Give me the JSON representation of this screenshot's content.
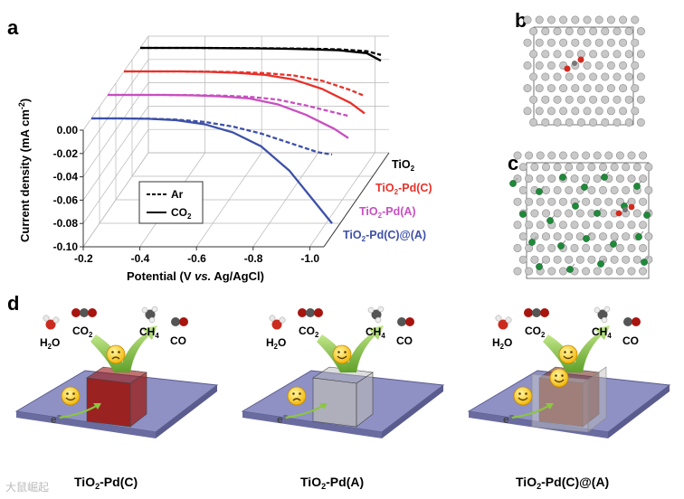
{
  "panels": {
    "a": "a",
    "b": "b",
    "c": "c",
    "d": "d"
  },
  "chart_data": {
    "type": "line",
    "title": "",
    "xlabel_parts": [
      "Potential (V ",
      "vs.",
      " Ag/AgCl)"
    ],
    "ylabel_text": "Current density (mA cm",
    "ylabel_sup": "-2",
    "ylabel_end": ")",
    "xlim": [
      -0.2,
      -1.05
    ],
    "ylim": [
      -0.1,
      0.0
    ],
    "xticks": [
      "-0.2",
      "-0.4",
      "-0.6",
      "-0.8",
      "-1.0"
    ],
    "xtick_values": [
      -0.2,
      -0.4,
      -0.6,
      -0.8,
      -1.0
    ],
    "yticks": [
      "0.00",
      "-0.02",
      "-0.04",
      "-0.06",
      "-0.08",
      "-0.10"
    ],
    "ytick_values": [
      0.0,
      -0.02,
      -0.04,
      -0.06,
      -0.08,
      -0.1
    ],
    "legend": [
      {
        "style": "dashed",
        "label": "Ar"
      },
      {
        "style": "solid",
        "label": "CO",
        "sub": "2"
      }
    ],
    "x": [
      -0.2,
      -0.3,
      -0.4,
      -0.5,
      -0.6,
      -0.7,
      -0.8,
      -0.9,
      -1.0,
      -1.05
    ],
    "series": [
      {
        "name": "TiO2",
        "label_main": "TiO",
        "label_sub": "2",
        "label_rest": "",
        "color": "#000000",
        "layer": 3,
        "co2": [
          0,
          0,
          0,
          -0.0002,
          -0.0004,
          -0.0007,
          -0.0012,
          -0.002,
          -0.0045,
          -0.011
        ],
        "ar": [
          0,
          0,
          0,
          -0.0001,
          -0.0002,
          -0.0004,
          -0.0007,
          -0.0012,
          -0.0028,
          -0.006
        ]
      },
      {
        "name": "TiO2-Pd(C)",
        "label_main": "TiO",
        "label_sub": "2",
        "label_rest": "-Pd(C)",
        "color": "#e8312a",
        "layer": 2,
        "co2": [
          0,
          0,
          0,
          -0.0004,
          -0.0012,
          -0.003,
          -0.007,
          -0.015,
          -0.027,
          -0.036
        ],
        "ar": [
          0,
          0,
          0,
          -0.0002,
          -0.0006,
          -0.0015,
          -0.0035,
          -0.008,
          -0.016,
          -0.021
        ]
      },
      {
        "name": "TiO2-Pd(A)",
        "label_main": "TiO",
        "label_sub": "2",
        "label_rest": "-Pd(A)",
        "color": "#c84fc0",
        "layer": 1,
        "co2": [
          0,
          0,
          0,
          -0.0004,
          -0.0012,
          -0.003,
          -0.008,
          -0.017,
          -0.029,
          -0.037
        ],
        "ar": [
          0,
          0,
          0,
          -0.0002,
          -0.0006,
          -0.0016,
          -0.004,
          -0.009,
          -0.015,
          -0.018
        ]
      },
      {
        "name": "TiO2-Pd(C)@(A)",
        "label_main": "TiO",
        "label_sub": "2",
        "label_rest": "-Pd(C)@(A)",
        "color": "#3d50a8",
        "layer": 0,
        "co2": [
          0,
          0,
          -0.0003,
          -0.0015,
          -0.005,
          -0.012,
          -0.024,
          -0.045,
          -0.075,
          -0.09
        ],
        "ar": [
          0,
          0,
          -0.0002,
          -0.001,
          -0.003,
          -0.007,
          -0.013,
          -0.021,
          -0.029,
          -0.031
        ]
      }
    ]
  },
  "scheme": {
    "molecules": {
      "h2o_main": "H",
      "h2o_sub": "2",
      "h2o_end": "O",
      "co2_main": "CO",
      "co2_sub": "2",
      "ch4_main": "CH",
      "ch4_sub": "4",
      "co": "CO",
      "electron": "e",
      "electron_sup": "−"
    },
    "panels": [
      {
        "name": "TiO2-Pd(C)",
        "main": "TiO",
        "sub": "2",
        "rest": "-Pd(C)",
        "cube_color": "#9b1c18",
        "top_face": "sad",
        "bottom_face": "happy"
      },
      {
        "name": "TiO2-Pd(A)",
        "main": "TiO",
        "sub": "2",
        "rest": "-Pd(A)",
        "cube_color": "#b9b9b9",
        "top_face": "happy",
        "bottom_face": "sad"
      },
      {
        "name": "TiO2-Pd(C)@(A)",
        "main": "TiO",
        "sub": "2",
        "rest": "-Pd(C)@(A)",
        "cube_color": "#7a3a30",
        "top_face": "happy",
        "bottom_face": "happy"
      }
    ]
  },
  "watermark": "大鼠崛起",
  "colors": {
    "red": "#e8312a",
    "magenta": "#c84fc0",
    "blue": "#3d50a8",
    "black": "#000000",
    "plate": "#8f91c4",
    "arrow": "#8dc63f"
  }
}
